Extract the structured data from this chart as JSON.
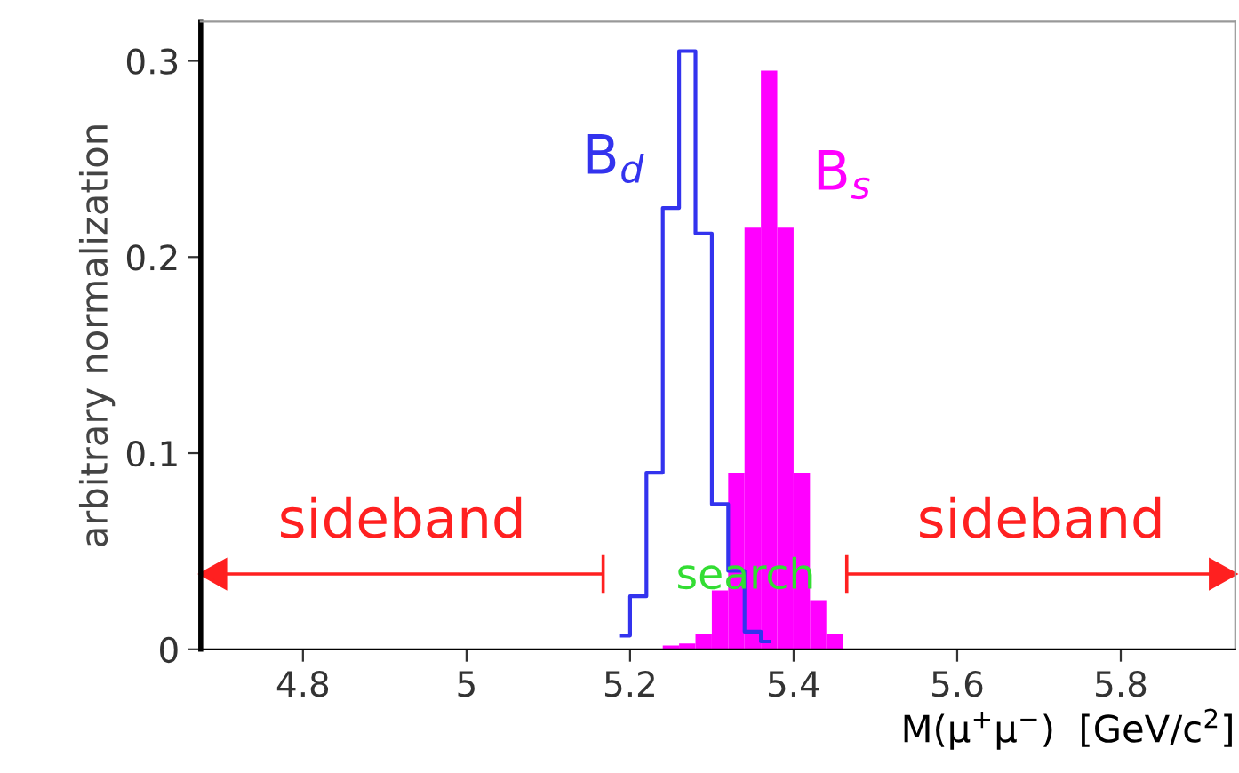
{
  "chart_data": {
    "type": "histogram",
    "xlabel": "M(μ$^{+}$μ$^{−}$)  [GeV/c$^{2}$]",
    "ylabel": "arbitrary normalization",
    "xlim": [
      4.675,
      5.94
    ],
    "xticks": [
      4.8,
      5,
      5.2,
      5.4,
      5.6,
      5.8
    ],
    "ylim": [
      0,
      0.32
    ],
    "yticks": [
      0,
      0.1,
      0.2,
      0.3
    ],
    "bins": [
      5.24,
      5.26,
      5.28,
      5.3,
      5.32,
      5.34,
      5.36,
      5.38,
      5.4,
      5.42,
      5.44,
      5.46
    ],
    "series": [
      {
        "name": "B$_{d}$",
        "type": "step",
        "color": "#3333ee",
        "x": [
          5.19,
          5.21,
          5.23,
          5.25,
          5.27,
          5.29,
          5.31,
          5.33,
          5.35,
          5.37
        ],
        "values": [
          0.007,
          0.027,
          0.09,
          0.225,
          0.305,
          0.212,
          0.074,
          0.04,
          0.009,
          0.004
        ]
      },
      {
        "name": "B$_{s}$",
        "color": "#ff00ff",
        "values": [
          0.002,
          0.003,
          0.008,
          0.03,
          0.09,
          0.215,
          0.295,
          0.215,
          0.09,
          0.025,
          0.008
        ]
      }
    ],
    "annotations": [
      "sideband",
      "search",
      "sideband"
    ]
  }
}
